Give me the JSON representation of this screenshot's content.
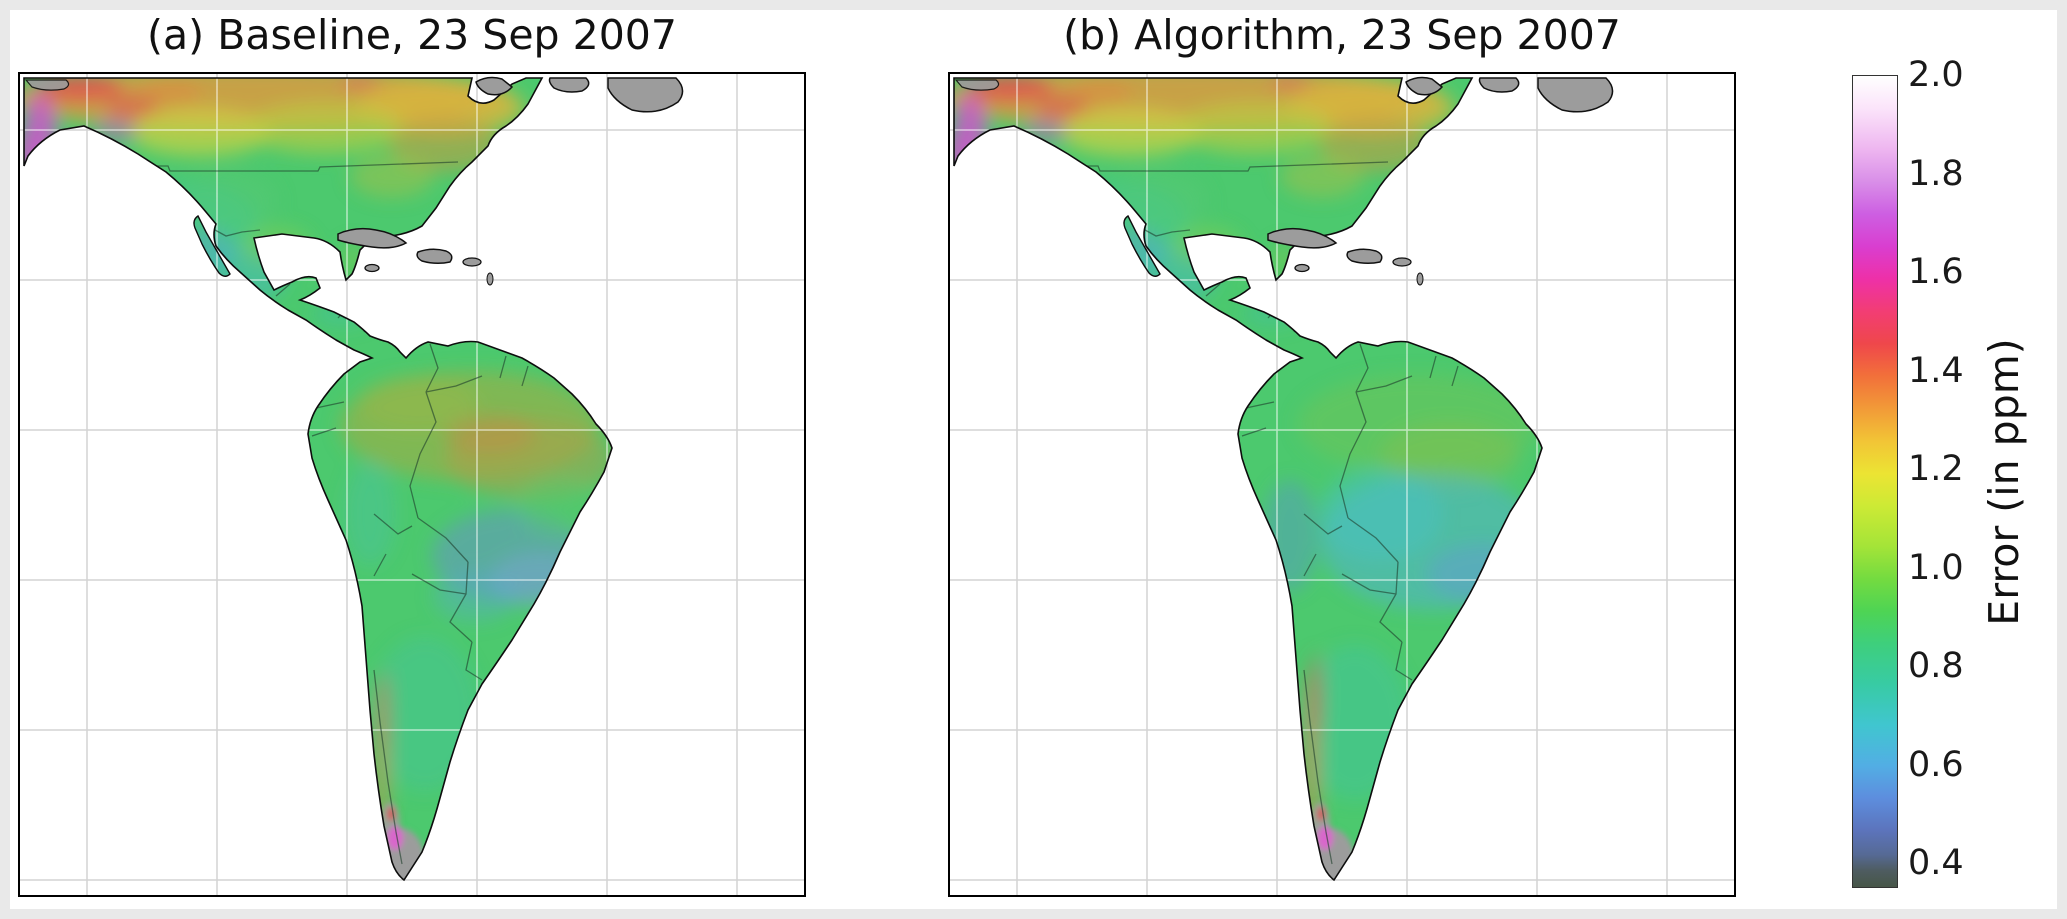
{
  "figure": {
    "panels": [
      {
        "id": "a",
        "title": "(a) Baseline, 23 Sep 2007"
      },
      {
        "id": "b",
        "title": "(b) Algorithm, 23 Sep 2007"
      }
    ],
    "colorbar": {
      "label": "Error (in ppm)",
      "ticks": [
        "2.0",
        "1.8",
        "1.6",
        "1.4",
        "1.2",
        "1.0",
        "0.8",
        "0.6",
        "0.4"
      ],
      "vmax": 2.0,
      "vmin": 0.35
    },
    "colors": {
      "background_frame": "#e9e9e9",
      "panel_background": "#ffffff",
      "land_base_green": "#4cc96e",
      "no_data_gray": "#9c9c9c",
      "gridline_ocean": "#d4d4d4",
      "gridline_land": "#ffffff"
    }
  },
  "chart_data": {
    "type": "heatmap",
    "subtype": "geographic-error-map-comparison",
    "region_shown": "North and South America",
    "gridlines": true,
    "panels": [
      {
        "label": "(a) Baseline, 23 Sep 2007",
        "region_estimates_ppm": {
          "boreal_canada": "1.2-1.6",
          "arctic_and_pacific_nw_coast": "1.6-2.0",
          "central_and_eastern_us": "0.8-1.1",
          "western_us": "0.6-0.9",
          "mexico_central_america": "0.6-0.9",
          "amazon_basin": "1.0-1.3",
          "central_eastern_brazil": "0.5-0.8",
          "southern_south_america": "0.7-0.9",
          "andes_chile_argentina_border": "1.3-1.7",
          "patagonia_tip_and_arctic_islands": "no data (gray)"
        }
      },
      {
        "label": "(b) Algorithm, 23 Sep 2007",
        "region_estimates_ppm": {
          "boreal_canada": "1.1-1.5",
          "arctic_and_pacific_nw_coast": "1.6-2.0",
          "central_and_eastern_us": "0.8-1.0",
          "western_us": "0.6-0.8",
          "mexico_central_america": "0.6-0.9",
          "amazon_basin": "0.8-1.0",
          "central_eastern_brazil": "0.5-0.7",
          "southern_south_america": "0.7-0.9",
          "andes_chile_argentina_border": "1.3-1.7",
          "patagonia_tip_and_arctic_islands": "no data (gray)"
        }
      }
    ],
    "colorbar": {
      "label": "Error (in ppm)",
      "tick_values": [
        2.0,
        1.8,
        1.6,
        1.4,
        1.2,
        1.0,
        0.8,
        0.6,
        0.4
      ],
      "range": [
        0.35,
        2.0
      ],
      "colormap_stops": [
        {
          "value": 2.0,
          "color": "#ffffff"
        },
        {
          "value": 1.9,
          "color": "#eeb6f0"
        },
        {
          "value": 1.8,
          "color": "#d98fe8"
        },
        {
          "value": 1.7,
          "color": "#d93ed0"
        },
        {
          "value": 1.6,
          "color": "#ee30a8"
        },
        {
          "value": 1.5,
          "color": "#ef474b"
        },
        {
          "value": 1.4,
          "color": "#f2703a"
        },
        {
          "value": 1.3,
          "color": "#f29a38"
        },
        {
          "value": 1.2,
          "color": "#f2c436"
        },
        {
          "value": 1.1,
          "color": "#cdea35"
        },
        {
          "value": 1.0,
          "color": "#a4e438"
        },
        {
          "value": 0.9,
          "color": "#4ed454"
        },
        {
          "value": 0.8,
          "color": "#3ecf7c"
        },
        {
          "value": 0.7,
          "color": "#38cba4"
        },
        {
          "value": 0.6,
          "color": "#40c6cf"
        },
        {
          "value": 0.5,
          "color": "#5d8ede"
        },
        {
          "value": 0.4,
          "color": "#566a95"
        },
        {
          "value": 0.35,
          "color": "#475648"
        }
      ]
    },
    "notes": "Both panels share the same colormap; panel (b) shows generally lower error over the Amazon and central South America than panel (a)."
  }
}
